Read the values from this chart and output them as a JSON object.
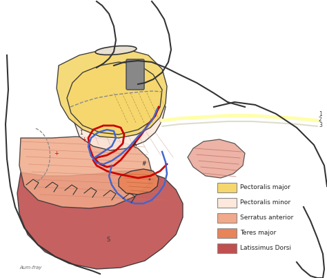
{
  "title": "",
  "background_color": "#ffffff",
  "legend_items": [
    {
      "label": "Pectoralis major",
      "color": "#f5d76e"
    },
    {
      "label": "Pectoralis minor",
      "color": "#fce8dc"
    },
    {
      "label": "Serratus anterior",
      "color": "#f0a98a"
    },
    {
      "label": "Teres major",
      "color": "#e8845a"
    },
    {
      "label": "Latissimus Dorsi",
      "color": "#c05050"
    }
  ],
  "colors": {
    "pec_major": "#f5d76e",
    "pec_minor": "#fce8dc",
    "serratus": "#f0a98a",
    "teres": "#e8845a",
    "latissimus": "#c05050",
    "outline": "#333333",
    "red_vessel": "#cc0000",
    "blue_vessel": "#4466cc",
    "gray_implant": "#888888",
    "skin": "#f5e8d8",
    "nerve_yellow": "#ffffaa",
    "nerve_white": "#eeeeee",
    "dashed_line": "#888888"
  }
}
